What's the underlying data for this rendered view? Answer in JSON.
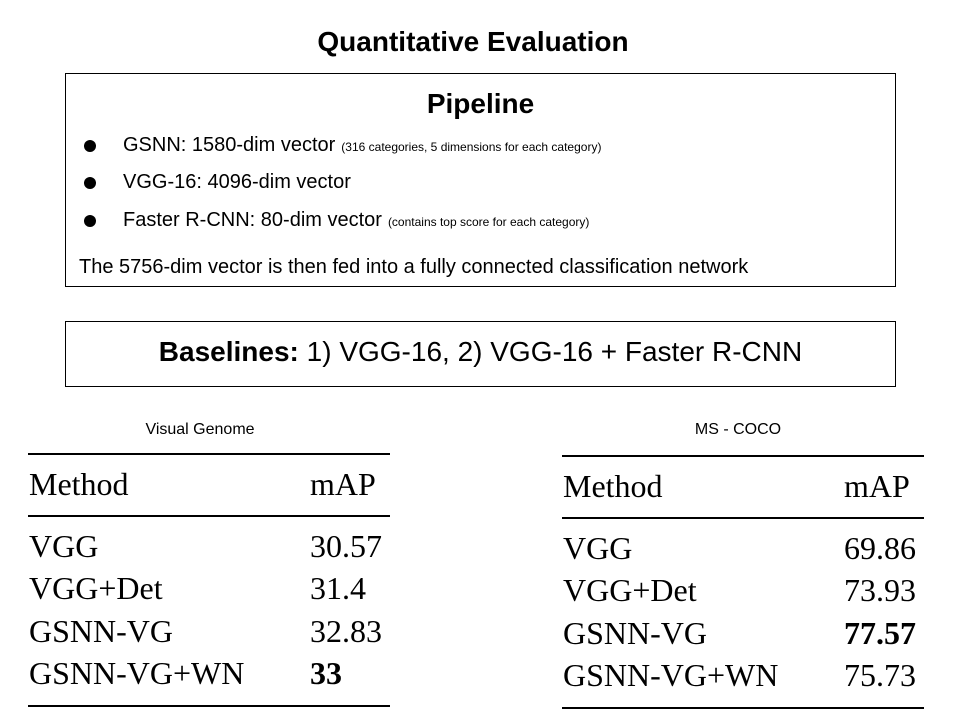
{
  "title": "Quantitative Evaluation",
  "pipeline": {
    "heading": "Pipeline",
    "items": [
      {
        "main": "GSNN: 1580-dim vector",
        "note": "(316 categories, 5 dimensions for each category)"
      },
      {
        "main": "VGG-16: 4096-dim vector",
        "note": ""
      },
      {
        "main": "Faster R-CNN: 80-dim vector",
        "note": "(contains top score for each category)"
      }
    ],
    "summary": "The 5756-dim vector is then fed into a fully connected classification network"
  },
  "baselines": {
    "label": "Baselines:",
    "text": "1) VGG-16, 2) VGG-16 + Faster R-CNN"
  },
  "tables": [
    {
      "caption": "Visual Genome",
      "header": [
        "Method",
        "mAP"
      ],
      "rows": [
        {
          "method": "VGG",
          "map": "30.57",
          "bold": false
        },
        {
          "method": "VGG+Det",
          "map": "31.4",
          "bold": false
        },
        {
          "method": "GSNN-VG",
          "map": "32.83",
          "bold": false
        },
        {
          "method": "GSNN-VG+WN",
          "map": "33",
          "bold": true
        }
      ]
    },
    {
      "caption": "MS - COCO",
      "header": [
        "Method",
        "mAP"
      ],
      "rows": [
        {
          "method": "VGG",
          "map": "69.86",
          "bold": false
        },
        {
          "method": "VGG+Det",
          "map": "73.93",
          "bold": false
        },
        {
          "method": "GSNN-VG",
          "map": "77.57",
          "bold": true
        },
        {
          "method": "GSNN-VG+WN",
          "map": "75.73",
          "bold": false
        }
      ]
    }
  ]
}
